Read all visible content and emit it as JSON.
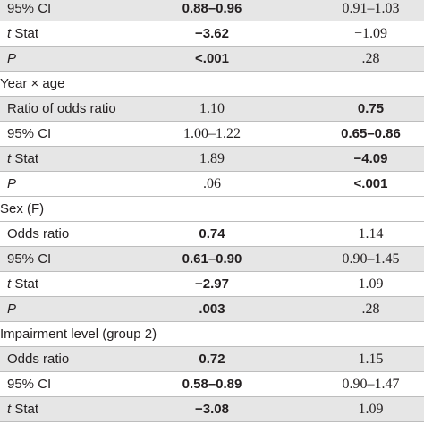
{
  "rows": [
    {
      "kind": "sub",
      "pre": "",
      "it": "",
      "post": "95% CI",
      "v1": "0.88–0.96",
      "b1": true,
      "v2": "0.91–1.03",
      "b2": false
    },
    {
      "kind": "sub",
      "pre": "",
      "it": "t",
      "post": " Stat",
      "v1": "−3.62",
      "b1": true,
      "v2": "−1.09",
      "b2": false
    },
    {
      "kind": "sub",
      "pre": "",
      "it": "P",
      "post": "",
      "v1": "<.001",
      "b1": true,
      "v2": ".28",
      "b2": false
    },
    {
      "kind": "group",
      "label": "Year × age"
    },
    {
      "kind": "sub",
      "pre": "Ratio of odds ratio",
      "it": "",
      "post": "",
      "v1": "1.10",
      "b1": false,
      "v2": "0.75",
      "b2": true
    },
    {
      "kind": "sub",
      "pre": "95% CI",
      "it": "",
      "post": "",
      "v1": "1.00–1.22",
      "b1": false,
      "v2": "0.65–0.86",
      "b2": true
    },
    {
      "kind": "sub",
      "pre": "",
      "it": "t",
      "post": " Stat",
      "v1": "1.89",
      "b1": false,
      "v2": "−4.09",
      "b2": true
    },
    {
      "kind": "sub",
      "pre": "",
      "it": "P",
      "post": "",
      "v1": ".06",
      "b1": false,
      "v2": "<.001",
      "b2": true
    },
    {
      "kind": "group",
      "label": "Sex (F)"
    },
    {
      "kind": "sub",
      "pre": "Odds ratio",
      "it": "",
      "post": "",
      "v1": "0.74",
      "b1": true,
      "v2": "1.14",
      "b2": false
    },
    {
      "kind": "sub",
      "pre": "95% CI",
      "it": "",
      "post": "",
      "v1": "0.61–0.90",
      "b1": true,
      "v2": "0.90–1.45",
      "b2": false
    },
    {
      "kind": "sub",
      "pre": "",
      "it": "t",
      "post": " Stat",
      "v1": "−2.97",
      "b1": true,
      "v2": "1.09",
      "b2": false
    },
    {
      "kind": "sub",
      "pre": "",
      "it": "P",
      "post": "",
      "v1": ".003",
      "b1": true,
      "v2": ".28",
      "b2": false
    },
    {
      "kind": "group",
      "label": "Impairment level (group 2)"
    },
    {
      "kind": "sub",
      "pre": "Odds ratio",
      "it": "",
      "post": "",
      "v1": "0.72",
      "b1": true,
      "v2": "1.15",
      "b2": false
    },
    {
      "kind": "sub",
      "pre": "95% CI",
      "it": "",
      "post": "",
      "v1": "0.58–0.89",
      "b1": true,
      "v2": "0.90–1.47",
      "b2": false
    },
    {
      "kind": "sub",
      "pre": "",
      "it": "t",
      "post": " Stat",
      "v1": "−3.08",
      "b1": true,
      "v2": "1.09",
      "b2": false
    }
  ]
}
